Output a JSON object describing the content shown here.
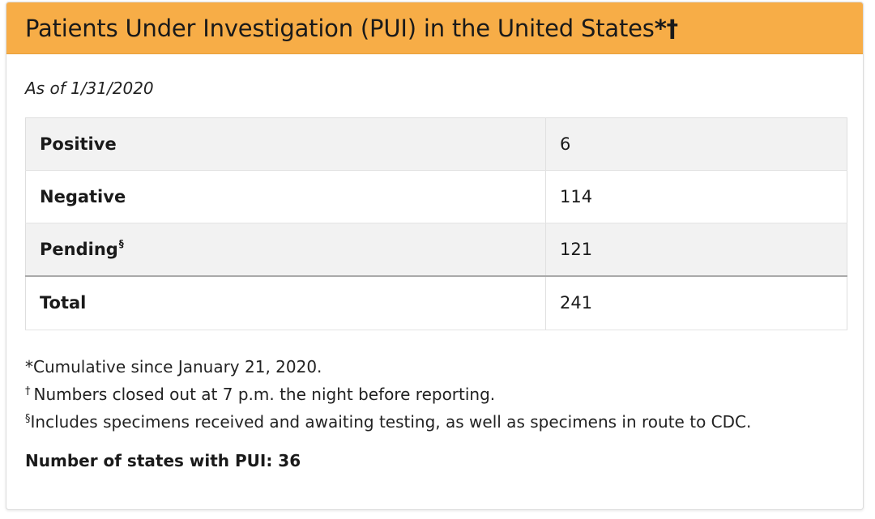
{
  "header": {
    "title": "Patients Under Investigation (PUI) in the United States",
    "title_marks": "*†",
    "background_color": "#f7ad47"
  },
  "as_of": "As of 1/31/2020",
  "table": {
    "rows": [
      {
        "label": "Positive",
        "mark": "",
        "value": "6"
      },
      {
        "label": "Negative",
        "mark": "",
        "value": "114"
      },
      {
        "label": "Pending",
        "mark": "§",
        "value": "121"
      }
    ],
    "total": {
      "label": "Total",
      "value": "241"
    }
  },
  "footnotes": [
    {
      "mark": "*",
      "text": "Cumulative since January 21, 2020."
    },
    {
      "mark": "†",
      "text": "Numbers closed out at 7 p.m. the night before reporting."
    },
    {
      "mark": "§",
      "text": "Includes specimens received and awaiting testing, as well as specimens in route to CDC."
    }
  ],
  "states_summary": "Number of states with PUI: 36"
}
